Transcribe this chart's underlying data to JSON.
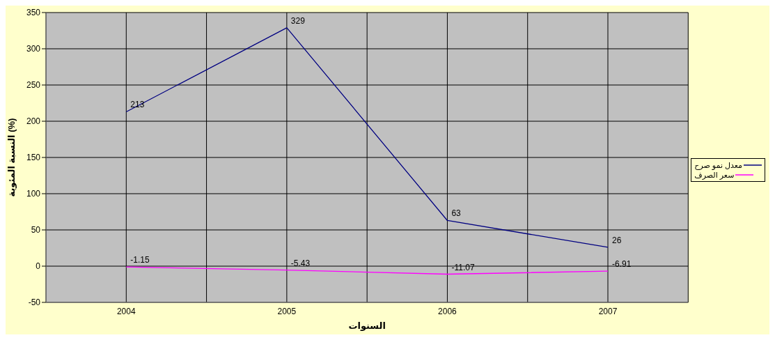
{
  "chart_data": {
    "type": "line",
    "xlabel": "السنوات",
    "ylabel": "النسبة المئوية (%)",
    "categories": [
      "2004",
      "2005",
      "2006",
      "2007"
    ],
    "series": [
      {
        "name": "معدل نمو صرح",
        "color": "#000080",
        "values": [
          213,
          329,
          63,
          26
        ]
      },
      {
        "name": "سعر الصرف",
        "color": "#ff00ff",
        "values": [
          -1.15,
          -5.43,
          -11.07,
          -6.91
        ]
      }
    ],
    "ylim": [
      -50,
      350
    ],
    "yticks": [
      -50,
      0,
      50,
      100,
      150,
      200,
      250,
      300,
      350
    ],
    "grid": true,
    "legend": "right",
    "data_labels": true,
    "marker": "none",
    "line_style": "solid"
  }
}
